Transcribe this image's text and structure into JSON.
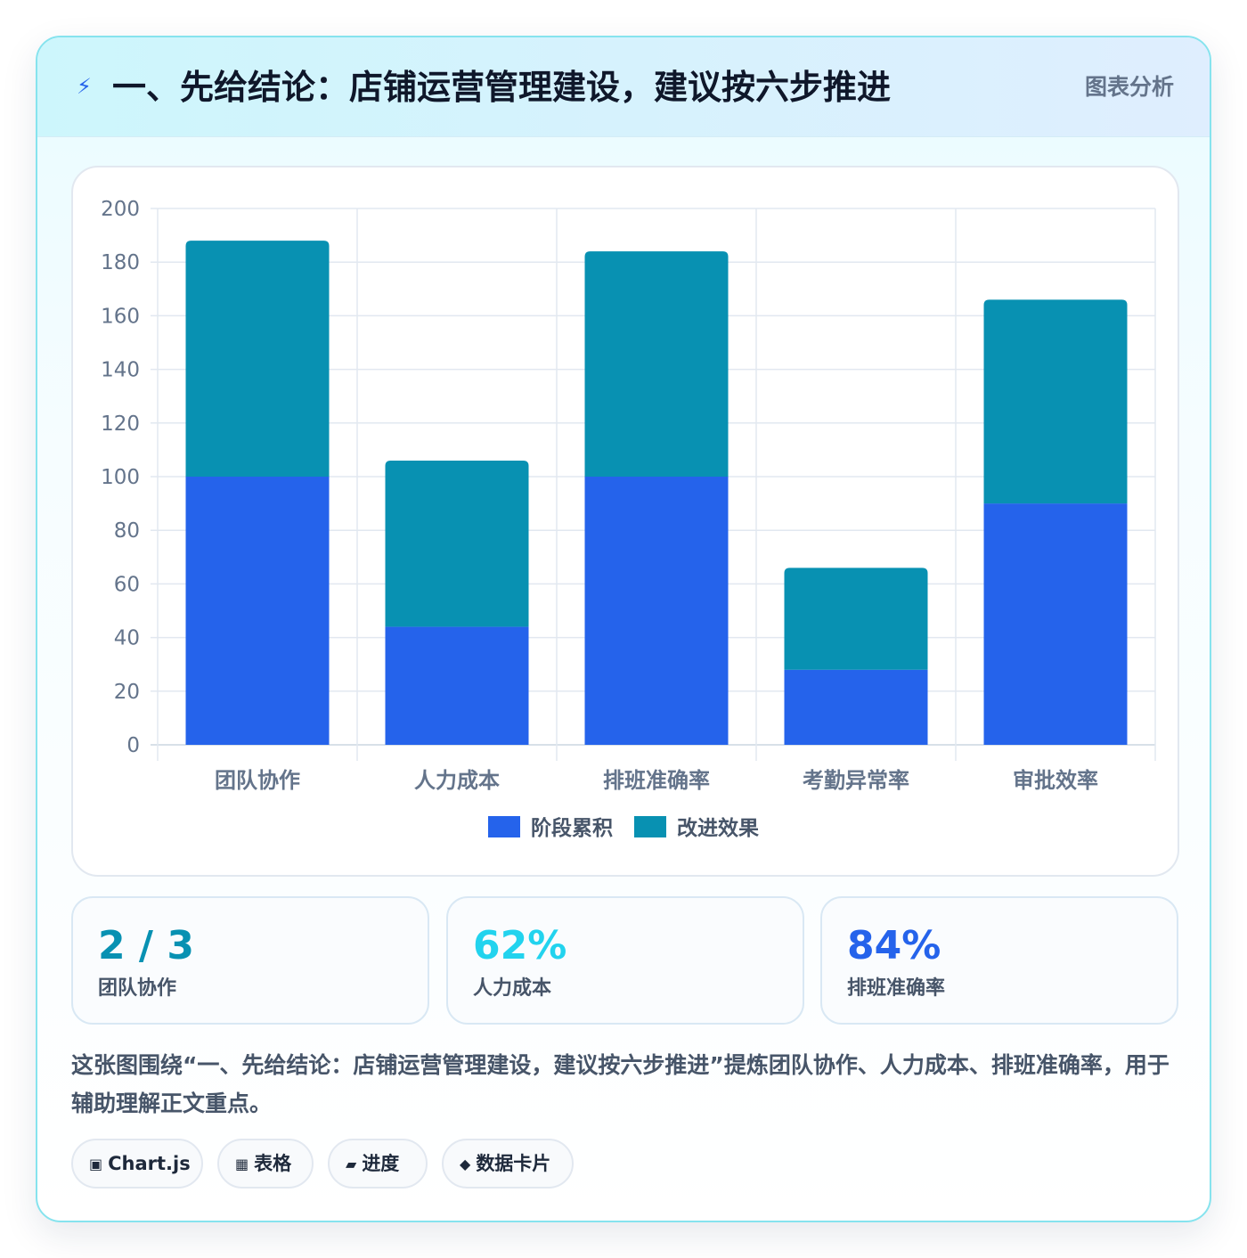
{
  "header": {
    "icon": "lightning-icon",
    "title": "一、先给结论：店铺运营管理建设，建议按六步推进",
    "tag": "图表分析"
  },
  "chart_data": {
    "type": "bar",
    "stacked": true,
    "categories": [
      "团队协作",
      "人力成本",
      "排班准确率",
      "考勤异常率",
      "审批效率"
    ],
    "series": [
      {
        "name": "阶段累积",
        "color": "#2563eb",
        "values": [
          100,
          44,
          100,
          28,
          90
        ]
      },
      {
        "name": "改进效果",
        "color": "#0891b2",
        "values": [
          88,
          62,
          84,
          38,
          76
        ]
      }
    ],
    "ylim": [
      0,
      200
    ],
    "yticks": [
      0,
      20,
      40,
      60,
      80,
      100,
      120,
      140,
      160,
      180,
      200
    ],
    "grid": true,
    "legend": "bottom",
    "title": "",
    "xlabel": "",
    "ylabel": ""
  },
  "stats": [
    {
      "value": "2 / 3",
      "label": "团队协作",
      "color": "#0891b2"
    },
    {
      "value": "62%",
      "label": "人力成本",
      "color": "#22d3ee"
    },
    {
      "value": "84%",
      "label": "排班准确率",
      "color": "#2563eb"
    }
  ],
  "description": "这张图围绕“一、先给结论：店铺运营管理建设，建议按六步推进”提炼团队协作、人力成本、排班准确率，用于辅助理解正文重点。",
  "chips": [
    {
      "icon": "▣",
      "label": "Chart.js"
    },
    {
      "icon": "▦",
      "label": "表格"
    },
    {
      "icon": "▰",
      "label": "进度"
    },
    {
      "icon": "◆",
      "label": "数据卡片"
    }
  ]
}
